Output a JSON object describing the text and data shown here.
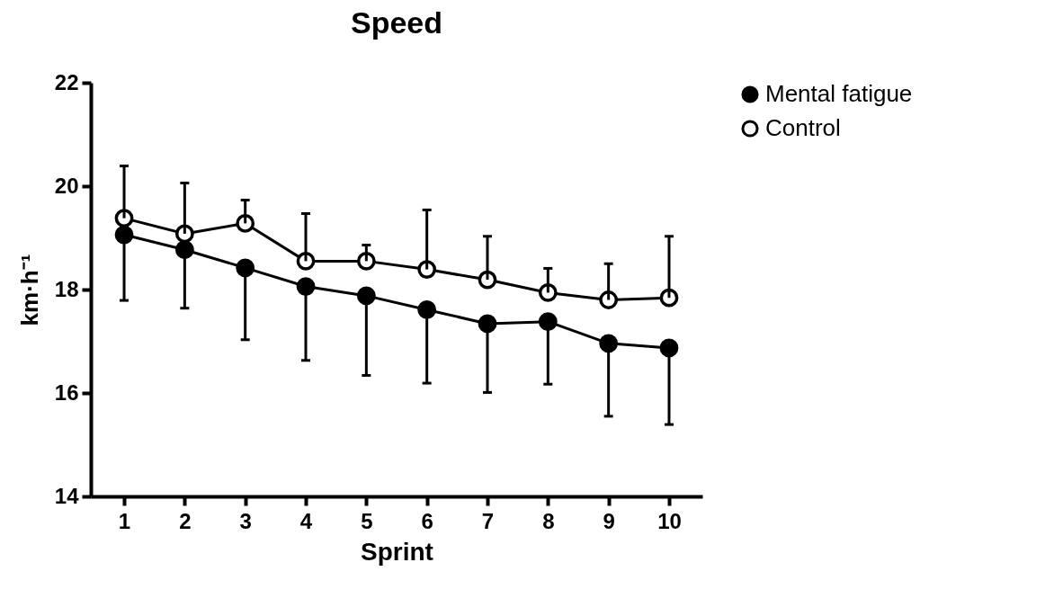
{
  "chart_data": {
    "type": "line",
    "title": "Speed",
    "xlabel": "Sprint",
    "ylabel": "km·h⁻¹",
    "categories": [
      "1",
      "2",
      "3",
      "4",
      "5",
      "6",
      "7",
      "8",
      "9",
      "10"
    ],
    "series": [
      {
        "name": "Mental fatigue",
        "color": "#000000",
        "values": [
          19.06,
          18.77,
          18.42,
          18.06,
          17.88,
          17.61,
          17.34,
          17.38,
          16.96,
          16.87
        ],
        "errors": [
          [
            17.79,
            19.06
          ],
          [
            17.64,
            18.77
          ],
          [
            17.03,
            18.42
          ],
          [
            16.63,
            18.06
          ],
          [
            16.34,
            17.88
          ],
          [
            16.19,
            17.61
          ],
          [
            16.01,
            17.34
          ],
          [
            16.17,
            17.38
          ],
          [
            15.55,
            16.96
          ],
          [
            15.39,
            16.87
          ]
        ]
      },
      {
        "name": "Control",
        "color": "#000000",
        "values": [
          19.38,
          19.08,
          19.28,
          18.55,
          18.55,
          18.39,
          18.19,
          17.94,
          17.8,
          17.84
        ],
        "errors": [
          [
            19.38,
            20.39
          ],
          [
            19.08,
            20.06
          ],
          [
            19.28,
            19.73
          ],
          [
            18.55,
            19.47
          ],
          [
            18.55,
            18.86
          ],
          [
            18.39,
            19.54
          ],
          [
            18.19,
            19.03
          ],
          [
            17.94,
            18.41
          ],
          [
            17.8,
            18.5
          ],
          [
            17.84,
            19.03
          ]
        ]
      }
    ],
    "ylim": [
      14,
      22
    ],
    "yticks": [
      14,
      16,
      18,
      20,
      22
    ],
    "grid": false,
    "legend": "top right",
    "marker": "circle",
    "line_style": "solid"
  }
}
